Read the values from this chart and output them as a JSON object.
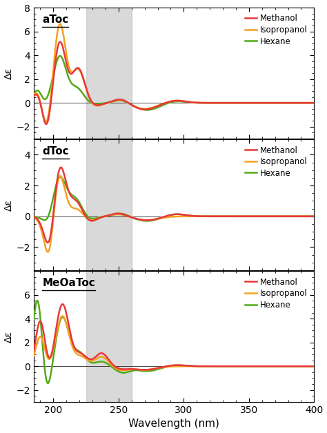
{
  "title_panel1": "aToc",
  "title_panel2": "dToc",
  "title_panel3": "MeOaToc",
  "xlabel": "Wavelength (nm)",
  "ylabel": "Δε",
  "xmin": 185,
  "xmax": 400,
  "gray_region": [
    225,
    260
  ],
  "gray_color": "#bbbbbb",
  "gray_alpha": 0.55,
  "color_methanol": "#e83838",
  "color_isopropanol": "#f5a020",
  "color_hexane": "#52aa18",
  "panel1_ylim": [
    -3,
    8
  ],
  "panel1_yticks": [
    -2,
    0,
    2,
    4,
    6,
    8
  ],
  "panel2_ylim": [
    -3.5,
    5
  ],
  "panel2_yticks": [
    -2,
    0,
    2,
    4
  ],
  "panel3_ylim": [
    -3,
    8
  ],
  "panel3_yticks": [
    -2,
    0,
    2,
    4,
    6
  ],
  "linewidth": 1.8
}
